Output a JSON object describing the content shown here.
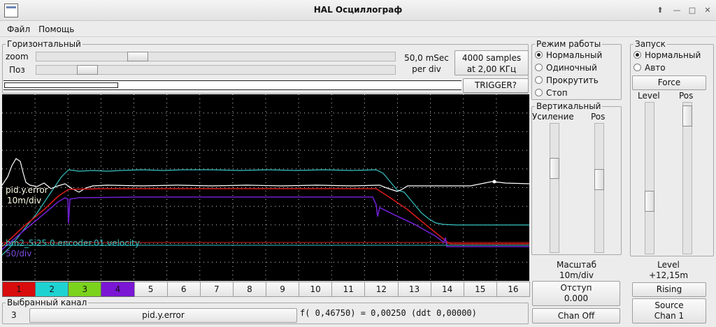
{
  "window": {
    "title": "HAL Осциллограф"
  },
  "menu": [
    "Файл",
    "Помощь"
  ],
  "horizontal": {
    "title": "Горизонтальный",
    "zoom_label": "zoom",
    "pos_label": "Поз",
    "zoom_position": 0.27,
    "pos_position": 0.12,
    "rate": "50,0 mSec",
    "rate_unit": "per div",
    "samples": "4000 samples",
    "samples_rate": "at 2,00 КГц",
    "trigger_button": "TRIGGER?"
  },
  "mode": {
    "title": "Режим работы",
    "options": [
      "Нормальный",
      "Одиночный",
      "Прокрутить",
      "Стоп"
    ],
    "selected": 0
  },
  "trigger": {
    "title": "Запуск",
    "options": [
      "Нормальный",
      "Авто"
    ],
    "selected": 0,
    "force_button": "Force",
    "level_label": "Level",
    "pos_label": "Pos",
    "level_position": 0.68,
    "pos_position": 0.02,
    "level_value_label": "Level",
    "level_value": "+12,15m",
    "edge_button": "Rising",
    "source_label": "Source",
    "source_value": "Chan  1"
  },
  "vertical": {
    "title": "Вертикальный",
    "gain_label": "Усиление",
    "pos_label": "Pos",
    "gain_position": 0.32,
    "pos_position": 0.42,
    "scale_label": "Масштаб",
    "scale_value": "10m/div",
    "offset_label": "Отступ",
    "offset_value": "0.000",
    "chan_off_button": "Chan Off"
  },
  "scope": {
    "background": "#000000",
    "grid_color": "#cfcfcf",
    "traces": [
      {
        "name": "pid.y.error",
        "scale": "10m/div",
        "color": "#ffffff"
      },
      {
        "name": "hm2_5i25.0.encoder.01.velocity",
        "scale": "50/div",
        "color": "#37c2c2"
      },
      {
        "name": "",
        "scale": "",
        "color": "#d61a1a"
      },
      {
        "name": "",
        "scale": "",
        "color": "#6d1fcc"
      }
    ]
  },
  "channels": [
    {
      "label": "1",
      "color": "#d80c0c"
    },
    {
      "label": "2",
      "color": "#1fd2d2"
    },
    {
      "label": "3",
      "color": "#7bd31c"
    },
    {
      "label": "4",
      "color": "#7a16d4"
    },
    {
      "label": "5"
    },
    {
      "label": "6"
    },
    {
      "label": "7"
    },
    {
      "label": "8"
    },
    {
      "label": "9"
    },
    {
      "label": "10"
    },
    {
      "label": "11"
    },
    {
      "label": "12"
    },
    {
      "label": "13"
    },
    {
      "label": "14"
    },
    {
      "label": "15"
    },
    {
      "label": "16"
    }
  ],
  "selected_channel": {
    "title": "Выбранный канал",
    "number": "3",
    "name": "pid.y.error",
    "readout": "f( 0,46750) =  0,00250 (ddt  0,00000)"
  }
}
